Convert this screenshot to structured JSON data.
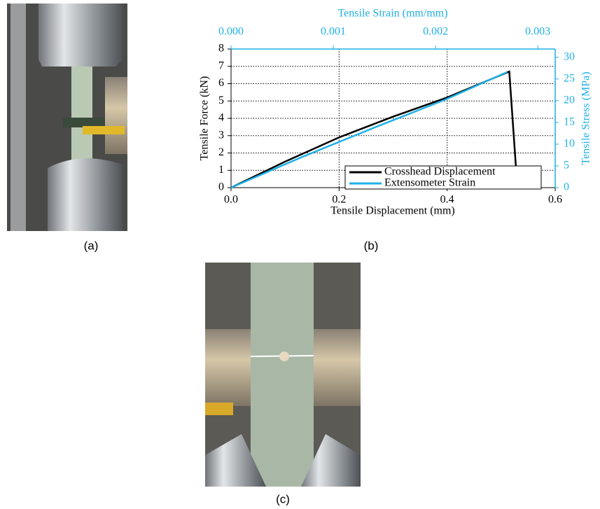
{
  "chart_data": {
    "type": "line",
    "title_x": "Tensile Displacement (mm)",
    "title_y": "Tensile Force (kN)",
    "title_x2": "Tensile Strain (mm/mm)",
    "title_y2": "Tensile Stress (MPa)",
    "xlim": [
      0,
      0.6
    ],
    "xticks": [
      {
        "value": 0,
        "label": "0.0"
      },
      0.2,
      0.4,
      0.6
    ],
    "ylim": [
      0,
      8
    ],
    "yticks": [
      0,
      1,
      2,
      3,
      4,
      5,
      6,
      7,
      8
    ],
    "x2lim": [
      0,
      0.00317
    ],
    "x2ticks": [
      {
        "value": 0,
        "label": "0.000"
      },
      {
        "value": 0.001,
        "label": "0.001"
      },
      {
        "value": 0.002,
        "label": "0.002"
      },
      {
        "value": 0.003,
        "label": "0.003"
      }
    ],
    "y2lim": [
      0,
      31.9
    ],
    "y2ticks": [
      0,
      5,
      10,
      15,
      20,
      25,
      30
    ],
    "grid": true,
    "legend": "lower right",
    "series": [
      {
        "name": "Crosshead Displacement",
        "color": "#000000",
        "x": [
          0,
          0.1,
          0.2,
          0.3,
          0.4,
          0.515,
          0.53
        ],
        "values": [
          0,
          1.5,
          2.9,
          4.1,
          5.2,
          6.7,
          0
        ]
      },
      {
        "name": "Extensometer Strain",
        "color": "#1fb1e6",
        "axis": "y2",
        "xaxis": "x2",
        "x": [
          0,
          0.0007,
          0.0014,
          0.0021,
          0.0027
        ],
        "values": [
          0,
          7.1,
          13.8,
          20.3,
          26.6
        ]
      }
    ]
  },
  "captions": [
    "(a)",
    "(b)",
    "(c)"
  ]
}
